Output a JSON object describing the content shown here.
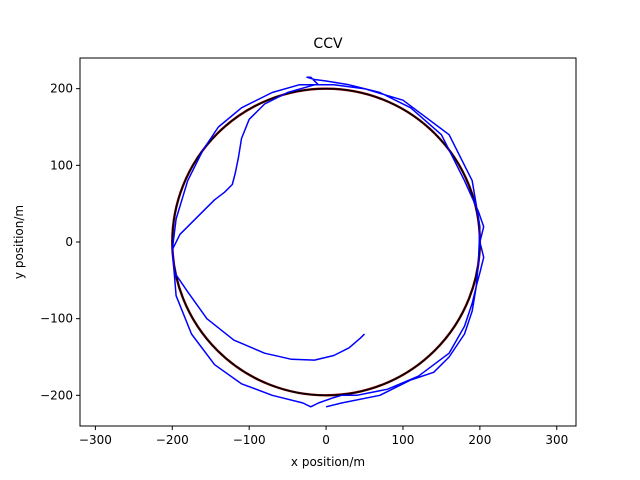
{
  "chart_data": {
    "type": "line",
    "title": "CCV",
    "xlabel": "x position/m",
    "ylabel": "y position/m",
    "xlim": [
      -320,
      325
    ],
    "ylim": [
      -240,
      240
    ],
    "xticks": [
      "−300",
      "−200",
      "−100",
      "0",
      "100",
      "200",
      "300"
    ],
    "yticks": [
      "200",
      "100",
      "0",
      "−100",
      "−200"
    ],
    "grid": false,
    "series": [
      {
        "style": "reference-circle",
        "color": "#000000",
        "accent": "#8b0000",
        "center": [
          0,
          0
        ],
        "radius": 200
      },
      {
        "style": "estimated-trajectory",
        "color": "#0000ff",
        "x": [
          50,
          45,
          30,
          10,
          -15,
          -45,
          -80,
          -120,
          -155,
          -180,
          -197,
          -200,
          -190,
          -175,
          -160,
          -145,
          -132,
          -122,
          -118,
          -114,
          -110,
          -100,
          -80,
          -50,
          -15,
          -10,
          -20,
          -25,
          -15,
          0,
          30,
          70,
          110,
          150,
          180,
          198,
          205,
          200,
          205,
          200,
          196,
          190,
          180,
          160,
          120,
          80,
          40,
          20,
          10,
          -10,
          -20,
          -30,
          -70,
          -110,
          -145,
          -175,
          -195,
          -200,
          -195,
          -180,
          -160,
          -140,
          -110,
          -70,
          -35,
          10,
          50,
          100,
          160,
          190,
          200,
          198,
          195,
          190,
          180,
          160,
          140,
          110,
          70,
          20,
          0
        ],
        "y": [
          -120,
          -125,
          -138,
          -148,
          -154,
          -153,
          -145,
          -128,
          -100,
          -65,
          -40,
          -10,
          10,
          25,
          40,
          55,
          65,
          75,
          90,
          110,
          135,
          160,
          180,
          195,
          205,
          205,
          215,
          215,
          212,
          210,
          205,
          195,
          175,
          140,
          80,
          40,
          20,
          0,
          -20,
          -40,
          -55,
          -80,
          -110,
          -145,
          -175,
          -192,
          -200,
          -200,
          -203,
          -210,
          -215,
          -210,
          -200,
          -185,
          -160,
          -120,
          -70,
          -10,
          30,
          80,
          120,
          150,
          175,
          195,
          205,
          205,
          200,
          185,
          140,
          80,
          20,
          -30,
          -60,
          -90,
          -120,
          -150,
          -170,
          -180,
          -200,
          -210,
          -215
        ]
      }
    ]
  }
}
